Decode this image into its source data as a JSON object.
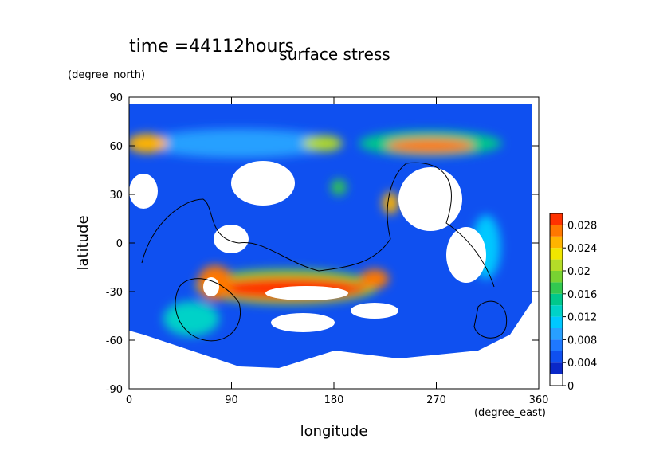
{
  "chart_data": {
    "type": "contour",
    "title": "surface stress",
    "annotation": "time =44112hours",
    "xlabel": "longitude",
    "ylabel": "latitude",
    "xunits": "(degree_east)",
    "yunits": "(degree_north)",
    "xlim": [
      0,
      360
    ],
    "xticks": [
      0,
      90,
      180,
      270,
      360
    ],
    "ylim": [
      -90,
      90
    ],
    "yticks": [
      -90,
      -60,
      -30,
      0,
      30,
      60,
      90
    ],
    "colorbar": {
      "lim": [
        0,
        0.03
      ],
      "ticks": [
        0,
        0.004,
        0.008,
        0.012,
        0.016,
        0.02,
        0.024,
        0.028
      ],
      "colors": [
        "#ffffff",
        "#0a28c8",
        "#0f50f0",
        "#1e78ff",
        "#28a0ff",
        "#00c8ff",
        "#00d2c8",
        "#00c88c",
        "#32c850",
        "#78d232",
        "#b4dc28",
        "#f0e600",
        "#ffb400",
        "#ff7800",
        "#ff3200"
      ]
    }
  }
}
